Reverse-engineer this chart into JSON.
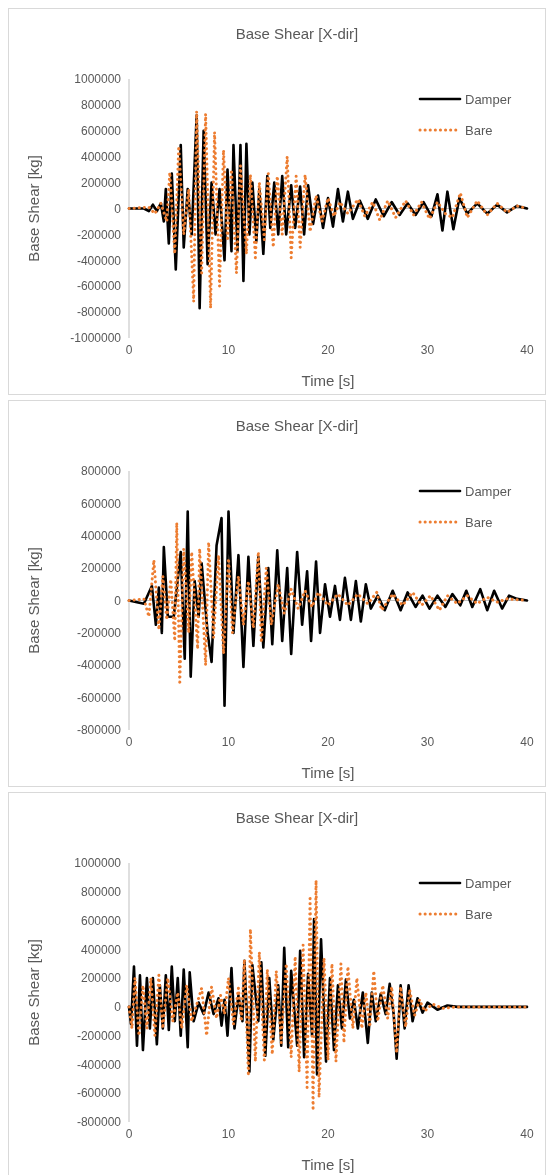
{
  "chart_data": [
    {
      "type": "line",
      "title": "Base Shear [X-dir]",
      "xlabel": "Time [s]",
      "ylabel": "Base Shear [kg]",
      "xlim": [
        0,
        40
      ],
      "xticks": [
        0,
        10,
        20,
        30,
        40
      ],
      "ylim": [
        -1000000,
        1000000
      ],
      "yticks": [
        -1000000,
        -800000,
        -600000,
        -400000,
        -200000,
        0,
        200000,
        400000,
        600000,
        800000,
        1000000
      ],
      "legend": "top right",
      "series": [
        {
          "name": "Damper",
          "color": "#000000",
          "line_style": "solid",
          "x": [
            0,
            1.5,
            2,
            2.4,
            2.8,
            3.2,
            3.5,
            3.7,
            4,
            4.3,
            4.7,
            5.2,
            5.5,
            5.9,
            6.3,
            6.8,
            7.1,
            7.5,
            7.9,
            8.3,
            8.7,
            9.1,
            9.6,
            9.9,
            10.3,
            10.5,
            10.9,
            11.2,
            11.5,
            11.8,
            12.1,
            12.4,
            12.8,
            13.1,
            13.5,
            13.9,
            14.2,
            14.6,
            15,
            15.4,
            15.8,
            16.3,
            16.7,
            17.2,
            17.6,
            18,
            18.5,
            19,
            19.5,
            20,
            20.5,
            21,
            21.5,
            22,
            22.5,
            23.2,
            24,
            24.8,
            25.6,
            26.4,
            27.2,
            28,
            28.8,
            29.6,
            30.4,
            31,
            31.5,
            32,
            32.6,
            33.2,
            34,
            35,
            36,
            37,
            38,
            39,
            40
          ],
          "values": [
            0,
            0,
            -20000,
            30000,
            -20000,
            40000,
            -100000,
            150000,
            -270000,
            270000,
            -470000,
            490000,
            -300000,
            150000,
            -200000,
            720000,
            -770000,
            600000,
            -430000,
            200000,
            -200000,
            150000,
            -400000,
            300000,
            -330000,
            490000,
            -330000,
            490000,
            -560000,
            500000,
            -200000,
            200000,
            -250000,
            150000,
            -350000,
            250000,
            -150000,
            200000,
            -200000,
            250000,
            -200000,
            180000,
            -150000,
            170000,
            -200000,
            180000,
            -120000,
            100000,
            -150000,
            80000,
            -140000,
            150000,
            -100000,
            130000,
            -80000,
            60000,
            -80000,
            70000,
            -60000,
            50000,
            -50000,
            40000,
            -50000,
            50000,
            -60000,
            110000,
            -170000,
            130000,
            -160000,
            80000,
            -40000,
            40000,
            -40000,
            30000,
            -30000,
            20000,
            0
          ]
        },
        {
          "name": "Bare",
          "color": "#ed7d31",
          "line_style": "dotted",
          "x": [
            0,
            2,
            2.6,
            3.2,
            3.8,
            4.1,
            4.6,
            5,
            5.5,
            6,
            6.5,
            6.8,
            7.3,
            7.7,
            8.2,
            8.6,
            9.1,
            9.5,
            9.9,
            10.3,
            10.8,
            11.2,
            11.8,
            12.2,
            12.7,
            13.1,
            13.6,
            14,
            14.5,
            14.9,
            15.4,
            15.9,
            16.3,
            16.8,
            17.2,
            17.7,
            18.2,
            18.8,
            19.4,
            20,
            20.6,
            21.2,
            22,
            23,
            23.7,
            24.5,
            25.2,
            26,
            26.8,
            27.8,
            28.6,
            29.4,
            30.2,
            31,
            31.8,
            32.5,
            33.3,
            34,
            35,
            36,
            37,
            38,
            39,
            40
          ],
          "values": [
            0,
            10000,
            -40000,
            40000,
            -100000,
            280000,
            -350000,
            480000,
            -200000,
            150000,
            -720000,
            750000,
            -500000,
            730000,
            -770000,
            590000,
            -600000,
            450000,
            -250000,
            300000,
            -500000,
            330000,
            -350000,
            260000,
            -380000,
            200000,
            -240000,
            270000,
            -300000,
            250000,
            -200000,
            400000,
            -380000,
            250000,
            -300000,
            260000,
            -180000,
            100000,
            -100000,
            80000,
            -60000,
            50000,
            -40000,
            70000,
            -60000,
            50000,
            -90000,
            60000,
            -70000,
            60000,
            -50000,
            50000,
            -80000,
            50000,
            -40000,
            -70000,
            120000,
            -70000,
            60000,
            -50000,
            40000,
            -30000,
            20000,
            0
          ]
        }
      ]
    },
    {
      "type": "line",
      "title": "Base Shear [X-dir]",
      "xlabel": "Time [s]",
      "ylabel": "Base Shear [kg]",
      "xlim": [
        0,
        40
      ],
      "xticks": [
        0,
        10,
        20,
        30,
        40
      ],
      "ylim": [
        -800000,
        800000
      ],
      "yticks": [
        -800000,
        -600000,
        -400000,
        -200000,
        0,
        200000,
        400000,
        600000,
        800000
      ],
      "legend": "top right",
      "series": [
        {
          "name": "Damper",
          "color": "#000000",
          "line_style": "solid",
          "x": [
            0,
            1.5,
            2.3,
            2.7,
            3,
            3.3,
            3.5,
            3.9,
            4.5,
            5.2,
            5.6,
            5.9,
            6.2,
            6.6,
            7,
            7.3,
            7.9,
            8.3,
            8.8,
            9.3,
            9.6,
            10,
            10.5,
            11,
            11.5,
            12,
            12.5,
            13,
            13.5,
            14,
            14.4,
            14.9,
            15.4,
            15.9,
            16.3,
            16.9,
            17.4,
            17.9,
            18.3,
            18.8,
            19.2,
            19.7,
            20.2,
            20.7,
            21.2,
            21.7,
            22.3,
            22.8,
            23.3,
            23.8,
            24.3,
            25,
            25.7,
            26.5,
            27.3,
            28,
            28.8,
            29.5,
            30.2,
            31,
            31.8,
            32.5,
            33.3,
            33.9,
            34.5,
            35.3,
            36,
            36.7,
            37.5,
            38.2,
            39,
            40
          ],
          "values": [
            0,
            -20000,
            90000,
            -150000,
            80000,
            -200000,
            330000,
            -100000,
            -100000,
            300000,
            -360000,
            550000,
            -470000,
            120000,
            -100000,
            230000,
            -200000,
            -380000,
            340000,
            510000,
            -650000,
            550000,
            -200000,
            280000,
            -410000,
            270000,
            -280000,
            270000,
            -290000,
            200000,
            -270000,
            310000,
            -250000,
            200000,
            -330000,
            300000,
            -150000,
            180000,
            -250000,
            240000,
            -200000,
            100000,
            -100000,
            90000,
            -120000,
            140000,
            -120000,
            120000,
            -130000,
            100000,
            -50000,
            30000,
            -60000,
            60000,
            -60000,
            50000,
            -40000,
            30000,
            -50000,
            30000,
            -40000,
            40000,
            -30000,
            60000,
            -40000,
            70000,
            -60000,
            60000,
            -50000,
            30000,
            10000,
            0
          ]
        },
        {
          "name": "Bare",
          "color": "#ed7d31",
          "line_style": "dotted",
          "x": [
            0,
            1.5,
            2,
            2.5,
            3,
            3.4,
            3.8,
            4.2,
            4.6,
            4.8,
            5.1,
            5.5,
            6,
            6.3,
            6.9,
            7.1,
            7.7,
            8,
            8.5,
            9,
            9.5,
            10,
            10.4,
            11,
            11.5,
            12,
            12.5,
            13,
            13.3,
            13.8,
            14.3,
            15,
            15.6,
            16.3,
            17,
            17.7,
            18.4,
            19,
            20,
            21,
            22,
            23,
            24,
            24.9,
            25.4,
            26.5,
            27.5,
            28.5,
            29.4,
            30.3,
            31.2,
            32,
            33,
            34,
            35,
            36,
            37,
            38,
            40
          ],
          "values": [
            0,
            10000,
            -100000,
            250000,
            -180000,
            150000,
            -120000,
            130000,
            -250000,
            480000,
            -520000,
            320000,
            -200000,
            300000,
            -300000,
            320000,
            -400000,
            360000,
            -230000,
            280000,
            -330000,
            260000,
            -200000,
            150000,
            -150000,
            120000,
            -170000,
            300000,
            -260000,
            200000,
            -150000,
            100000,
            -80000,
            70000,
            -50000,
            60000,
            -40000,
            50000,
            -30000,
            40000,
            -30000,
            40000,
            -20000,
            50000,
            -60000,
            40000,
            -30000,
            50000,
            -30000,
            30000,
            -60000,
            30000,
            -20000,
            30000,
            -20000,
            20000,
            -10000,
            10000,
            0
          ]
        }
      ]
    },
    {
      "type": "line",
      "title": "Base Shear [X-dir]",
      "xlabel": "Time [s]",
      "ylabel": "Base Shear [kg]",
      "xlim": [
        0,
        40
      ],
      "xticks": [
        0,
        10,
        20,
        30,
        40
      ],
      "ylim": [
        -800000,
        1000000
      ],
      "yticks": [
        -800000,
        -600000,
        -400000,
        -200000,
        0,
        200000,
        400000,
        600000,
        800000,
        1000000
      ],
      "legend": "top right",
      "series": [
        {
          "name": "Damper",
          "color": "#000000",
          "line_style": "solid",
          "x": [
            0,
            0.2,
            0.5,
            0.8,
            1.1,
            1.4,
            1.8,
            2.1,
            2.4,
            2.8,
            3.1,
            3.4,
            3.7,
            4,
            4.3,
            4.6,
            4.9,
            5.2,
            5.5,
            5.9,
            6.1,
            6.5,
            7,
            7.5,
            8,
            8.5,
            9,
            9.3,
            9.6,
            9.9,
            10.3,
            10.6,
            11,
            11.4,
            11.6,
            12.1,
            12.4,
            13,
            13.3,
            13.7,
            14.1,
            14.5,
            15,
            15.3,
            15.6,
            16,
            16.3,
            16.9,
            17.2,
            17.6,
            18,
            18.4,
            18.6,
            18.9,
            19.3,
            19.8,
            20.2,
            20.6,
            21,
            21.4,
            21.8,
            22.2,
            22.6,
            23,
            23.5,
            24,
            24.4,
            24.8,
            25.3,
            25.8,
            26.2,
            26.6,
            26.9,
            27.3,
            27.7,
            28.1,
            28.5,
            29,
            29.5,
            30,
            31,
            32,
            33,
            40
          ],
          "values": [
            0,
            -120000,
            280000,
            -270000,
            220000,
            -300000,
            200000,
            -150000,
            200000,
            -260000,
            150000,
            -150000,
            220000,
            -160000,
            280000,
            -100000,
            200000,
            -200000,
            260000,
            -280000,
            240000,
            -100000,
            30000,
            -50000,
            100000,
            -50000,
            60000,
            -130000,
            50000,
            -200000,
            270000,
            -150000,
            80000,
            -100000,
            320000,
            -450000,
            290000,
            -100000,
            310000,
            -340000,
            200000,
            -230000,
            150000,
            -270000,
            410000,
            -280000,
            250000,
            -270000,
            390000,
            -350000,
            230000,
            -200000,
            610000,
            -470000,
            470000,
            -380000,
            200000,
            -300000,
            150000,
            -150000,
            190000,
            -80000,
            50000,
            -150000,
            100000,
            -250000,
            100000,
            -100000,
            90000,
            -50000,
            160000,
            -50000,
            -360000,
            150000,
            -150000,
            150000,
            -100000,
            60000,
            -40000,
            30000,
            -20000,
            10000,
            0,
            0
          ]
        },
        {
          "name": "Bare",
          "color": "#ed7d31",
          "line_style": "dotted",
          "x": [
            0,
            0.3,
            0.6,
            1,
            1.4,
            1.8,
            2.2,
            2.6,
            3,
            3.4,
            3.9,
            4.4,
            4.9,
            5.3,
            5.8,
            6.3,
            7.3,
            7.8,
            8.3,
            8.8,
            9.2,
            9.6,
            10,
            10.5,
            11,
            11.3,
            11.6,
            12,
            12.2,
            12.7,
            13.1,
            13.6,
            13.9,
            14.4,
            14.8,
            15.3,
            15.8,
            16.3,
            16.7,
            17.1,
            17.5,
            17.9,
            18.2,
            18.5,
            18.8,
            19.1,
            19.6,
            20,
            20.4,
            20.8,
            21.3,
            21.6,
            22,
            22.5,
            22.9,
            23.4,
            23.8,
            24.2,
            24.6,
            25,
            25.5,
            26,
            26.4,
            26.9,
            27.3,
            27.8,
            28.2,
            28.7,
            29.2,
            29.7,
            30.5,
            31.5,
            33,
            40
          ],
          "values": [
            0,
            -150000,
            200000,
            -200000,
            150000,
            -150000,
            200000,
            -200000,
            220000,
            -150000,
            200000,
            -100000,
            100000,
            -150000,
            150000,
            -100000,
            130000,
            -200000,
            140000,
            -80000,
            80000,
            -50000,
            200000,
            -120000,
            130000,
            -100000,
            330000,
            -480000,
            540000,
            -380000,
            380000,
            -370000,
            260000,
            -330000,
            250000,
            -250000,
            300000,
            -350000,
            350000,
            -450000,
            430000,
            -560000,
            770000,
            -720000,
            880000,
            -630000,
            340000,
            -370000,
            300000,
            -380000,
            300000,
            -250000,
            280000,
            -150000,
            200000,
            -150000,
            100000,
            -140000,
            250000,
            -100000,
            150000,
            -80000,
            140000,
            -320000,
            140000,
            -140000,
            120000,
            -60000,
            50000,
            -30000,
            20000,
            -10000,
            0,
            0
          ]
        }
      ]
    }
  ]
}
